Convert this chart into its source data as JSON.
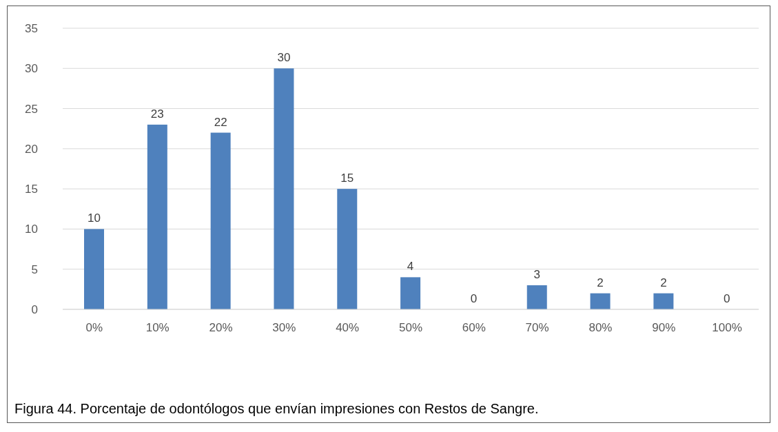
{
  "chart_data": {
    "type": "bar",
    "categories": [
      "0%",
      "10%",
      "20%",
      "30%",
      "40%",
      "50%",
      "60%",
      "70%",
      "80%",
      "90%",
      "100%"
    ],
    "values": [
      10,
      23,
      22,
      30,
      15,
      4,
      0,
      3,
      2,
      2,
      0
    ],
    "color": "#4f81bd",
    "ylim": [
      0,
      35
    ],
    "yticks": [
      0,
      5,
      10,
      15,
      20,
      25,
      30,
      35
    ],
    "grid": "y",
    "data_labels": true,
    "annotations": [
      "Figura 44. Porcentaje de odontólogos que envían impresiones con Restos de Sangre."
    ]
  }
}
